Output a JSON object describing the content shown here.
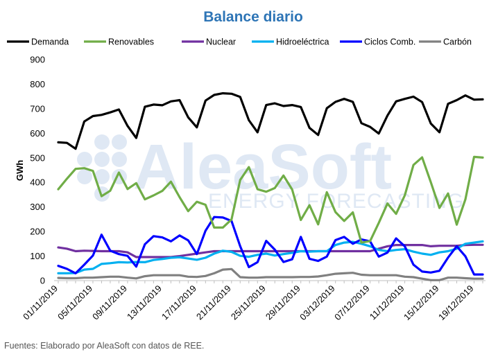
{
  "source": "Fuentes: Elaborado por AleaSoft con datos de REE.",
  "watermark": {
    "brand": "AleaSoft",
    "tagline": "ENERGY FORECASTING"
  },
  "chart_data": {
    "type": "line",
    "title": "Balance diario",
    "xlabel": "",
    "ylabel": "GWh",
    "ylim": [
      0,
      900
    ],
    "yticks": [
      0,
      100,
      200,
      300,
      400,
      500,
      600,
      700,
      800,
      900
    ],
    "grid": false,
    "legend_position": "top",
    "x": [
      "01/11/2019",
      "02/11/2019",
      "03/11/2019",
      "04/11/2019",
      "05/11/2019",
      "06/11/2019",
      "07/11/2019",
      "08/11/2019",
      "09/11/2019",
      "10/11/2019",
      "11/11/2019",
      "12/11/2019",
      "13/11/2019",
      "14/11/2019",
      "15/11/2019",
      "16/11/2019",
      "17/11/2019",
      "18/11/2019",
      "19/11/2019",
      "20/11/2019",
      "21/11/2019",
      "22/11/2019",
      "23/11/2019",
      "24/11/2019",
      "25/11/2019",
      "26/11/2019",
      "27/11/2019",
      "28/11/2019",
      "29/11/2019",
      "30/11/2019",
      "01/12/2019",
      "02/12/2019",
      "03/12/2019",
      "04/12/2019",
      "05/12/2019",
      "06/12/2019",
      "07/12/2019",
      "08/12/2019",
      "09/12/2019",
      "10/12/2019",
      "11/12/2019",
      "12/12/2019",
      "13/12/2019",
      "14/12/2019",
      "15/12/2019",
      "16/12/2019",
      "17/12/2019",
      "18/12/2019",
      "19/12/2019",
      "20/12/2019"
    ],
    "xtick_labels": [
      "01/11/2019",
      "05/11/2019",
      "09/11/2019",
      "13/11/2019",
      "17/11/2019",
      "21/11/2019",
      "25/11/2019",
      "29/11/2019",
      "03/12/2019",
      "07/12/2019",
      "11/12/2019",
      "15/12/2019",
      "19/12/2019"
    ],
    "series": [
      {
        "name": "Demanda",
        "color": "#000000",
        "values": [
          563,
          561,
          537,
          648,
          670,
          675,
          685,
          697,
          630,
          581,
          708,
          717,
          714,
          730,
          735,
          665,
          624,
          733,
          756,
          763,
          761,
          748,
          653,
          604,
          715,
          722,
          711,
          715,
          707,
          622,
          593,
          702,
          728,
          740,
          728,
          641,
          626,
          599,
          672,
          730,
          740,
          749,
          727,
          640,
          604,
          720,
          735,
          754,
          737,
          738
        ]
      },
      {
        "name": "Renovables",
        "color": "#70ad47",
        "values": [
          372,
          415,
          455,
          458,
          447,
          344,
          366,
          440,
          373,
          397,
          331,
          347,
          365,
          403,
          340,
          283,
          321,
          309,
          216,
          216,
          249,
          410,
          462,
          372,
          362,
          377,
          428,
          371,
          247,
          307,
          229,
          360,
          279,
          243,
          278,
          155,
          161,
          235,
          314,
          272,
          347,
          471,
          502,
          401,
          296,
          355,
          228,
          331,
          504,
          501
        ]
      },
      {
        "name": "Nuclear",
        "color": "#7030a0",
        "values": [
          135,
          130,
          120,
          122,
          121,
          120,
          120,
          120,
          115,
          96,
          96,
          96,
          96,
          96,
          100,
          105,
          110,
          115,
          120,
          120,
          120,
          120,
          120,
          120,
          120,
          120,
          120,
          120,
          120,
          120,
          120,
          120,
          120,
          120,
          120,
          120,
          120,
          130,
          140,
          145,
          145,
          145,
          145,
          140,
          142,
          142,
          142,
          145,
          146,
          146
        ]
      },
      {
        "name": "Hidroeléctrica",
        "color": "#00b0f0",
        "values": [
          30,
          30,
          31,
          45,
          48,
          68,
          71,
          75,
          74,
          76,
          75,
          84,
          88,
          93,
          95,
          90,
          85,
          93,
          110,
          122,
          117,
          101,
          97,
          105,
          110,
          102,
          108,
          113,
          120,
          118,
          120,
          120,
          145,
          155,
          158,
          150,
          140,
          125,
          120,
          125,
          128,
          118,
          110,
          105,
          115,
          120,
          130,
          150,
          155,
          160
        ]
      },
      {
        "name": "Ciclos Comb.",
        "color": "#0000ff",
        "values": [
          60,
          48,
          30,
          65,
          102,
          187,
          122,
          108,
          101,
          57,
          148,
          181,
          176,
          160,
          184,
          164,
          108,
          203,
          259,
          257,
          243,
          140,
          55,
          75,
          162,
          126,
          76,
          87,
          178,
          89,
          80,
          98,
          165,
          178,
          150,
          168,
          160,
          98,
          114,
          172,
          140,
          65,
          37,
          33,
          40,
          94,
          140,
          99,
          25,
          25
        ]
      },
      {
        "name": "Carbón",
        "color": "#808080",
        "values": [
          11,
          10,
          10,
          12,
          12,
          14,
          16,
          16,
          12,
          9,
          18,
          22,
          22,
          22,
          22,
          16,
          15,
          19,
          30,
          45,
          47,
          14,
          12,
          12,
          14,
          14,
          14,
          14,
          15,
          15,
          17,
          22,
          28,
          30,
          32,
          24,
          22,
          22,
          22,
          22,
          16,
          14,
          8,
          2,
          2,
          12,
          12,
          10,
          8,
          8
        ]
      }
    ]
  }
}
